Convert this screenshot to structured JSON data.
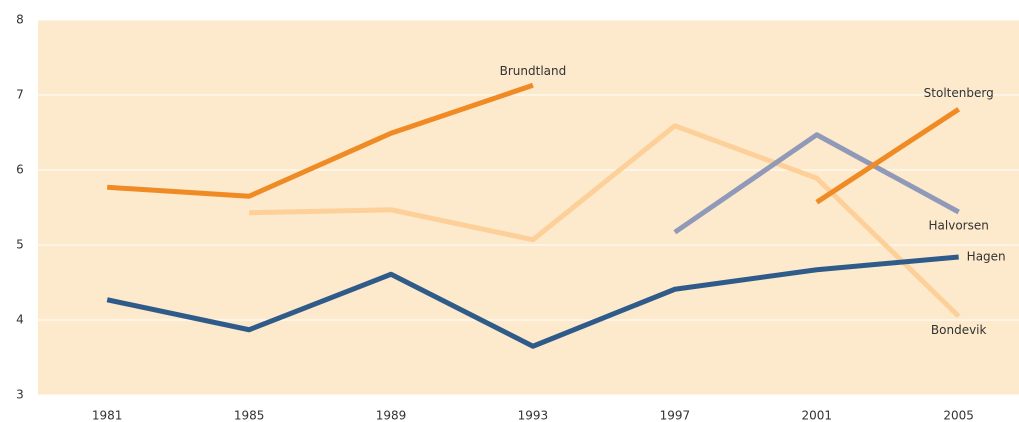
{
  "chart_data": {
    "type": "line",
    "x": [
      1981,
      1985,
      1989,
      1993,
      1997,
      2001,
      2005
    ],
    "xlim": [
      1979.05,
      2006.7
    ],
    "xticks": [
      1981,
      1985,
      1989,
      1993,
      1997,
      2001,
      2005
    ],
    "ylim": [
      3,
      8
    ],
    "yticks": [
      3,
      4,
      5,
      6,
      7,
      8
    ],
    "grid": true,
    "series": [
      {
        "name": "Brundtland",
        "color": "#f08a24",
        "values": [
          5.77,
          5.65,
          6.49,
          7.13,
          null,
          null,
          null
        ]
      },
      {
        "name": "Bondevik",
        "color": "#fdd09a",
        "values": [
          null,
          5.43,
          5.47,
          5.07,
          6.59,
          5.89,
          4.05
        ]
      },
      {
        "name": "Halvorsen",
        "color": "#9099b8",
        "values": [
          null,
          null,
          null,
          null,
          5.17,
          6.47,
          5.44
        ]
      },
      {
        "name": "Stoltenberg",
        "color": "#f08a24",
        "values": [
          null,
          null,
          null,
          null,
          null,
          5.57,
          6.81
        ]
      },
      {
        "name": "Hagen",
        "color": "#2f5b8a",
        "values": [
          4.27,
          3.87,
          4.61,
          3.65,
          4.41,
          4.67,
          4.84
        ]
      }
    ]
  }
}
